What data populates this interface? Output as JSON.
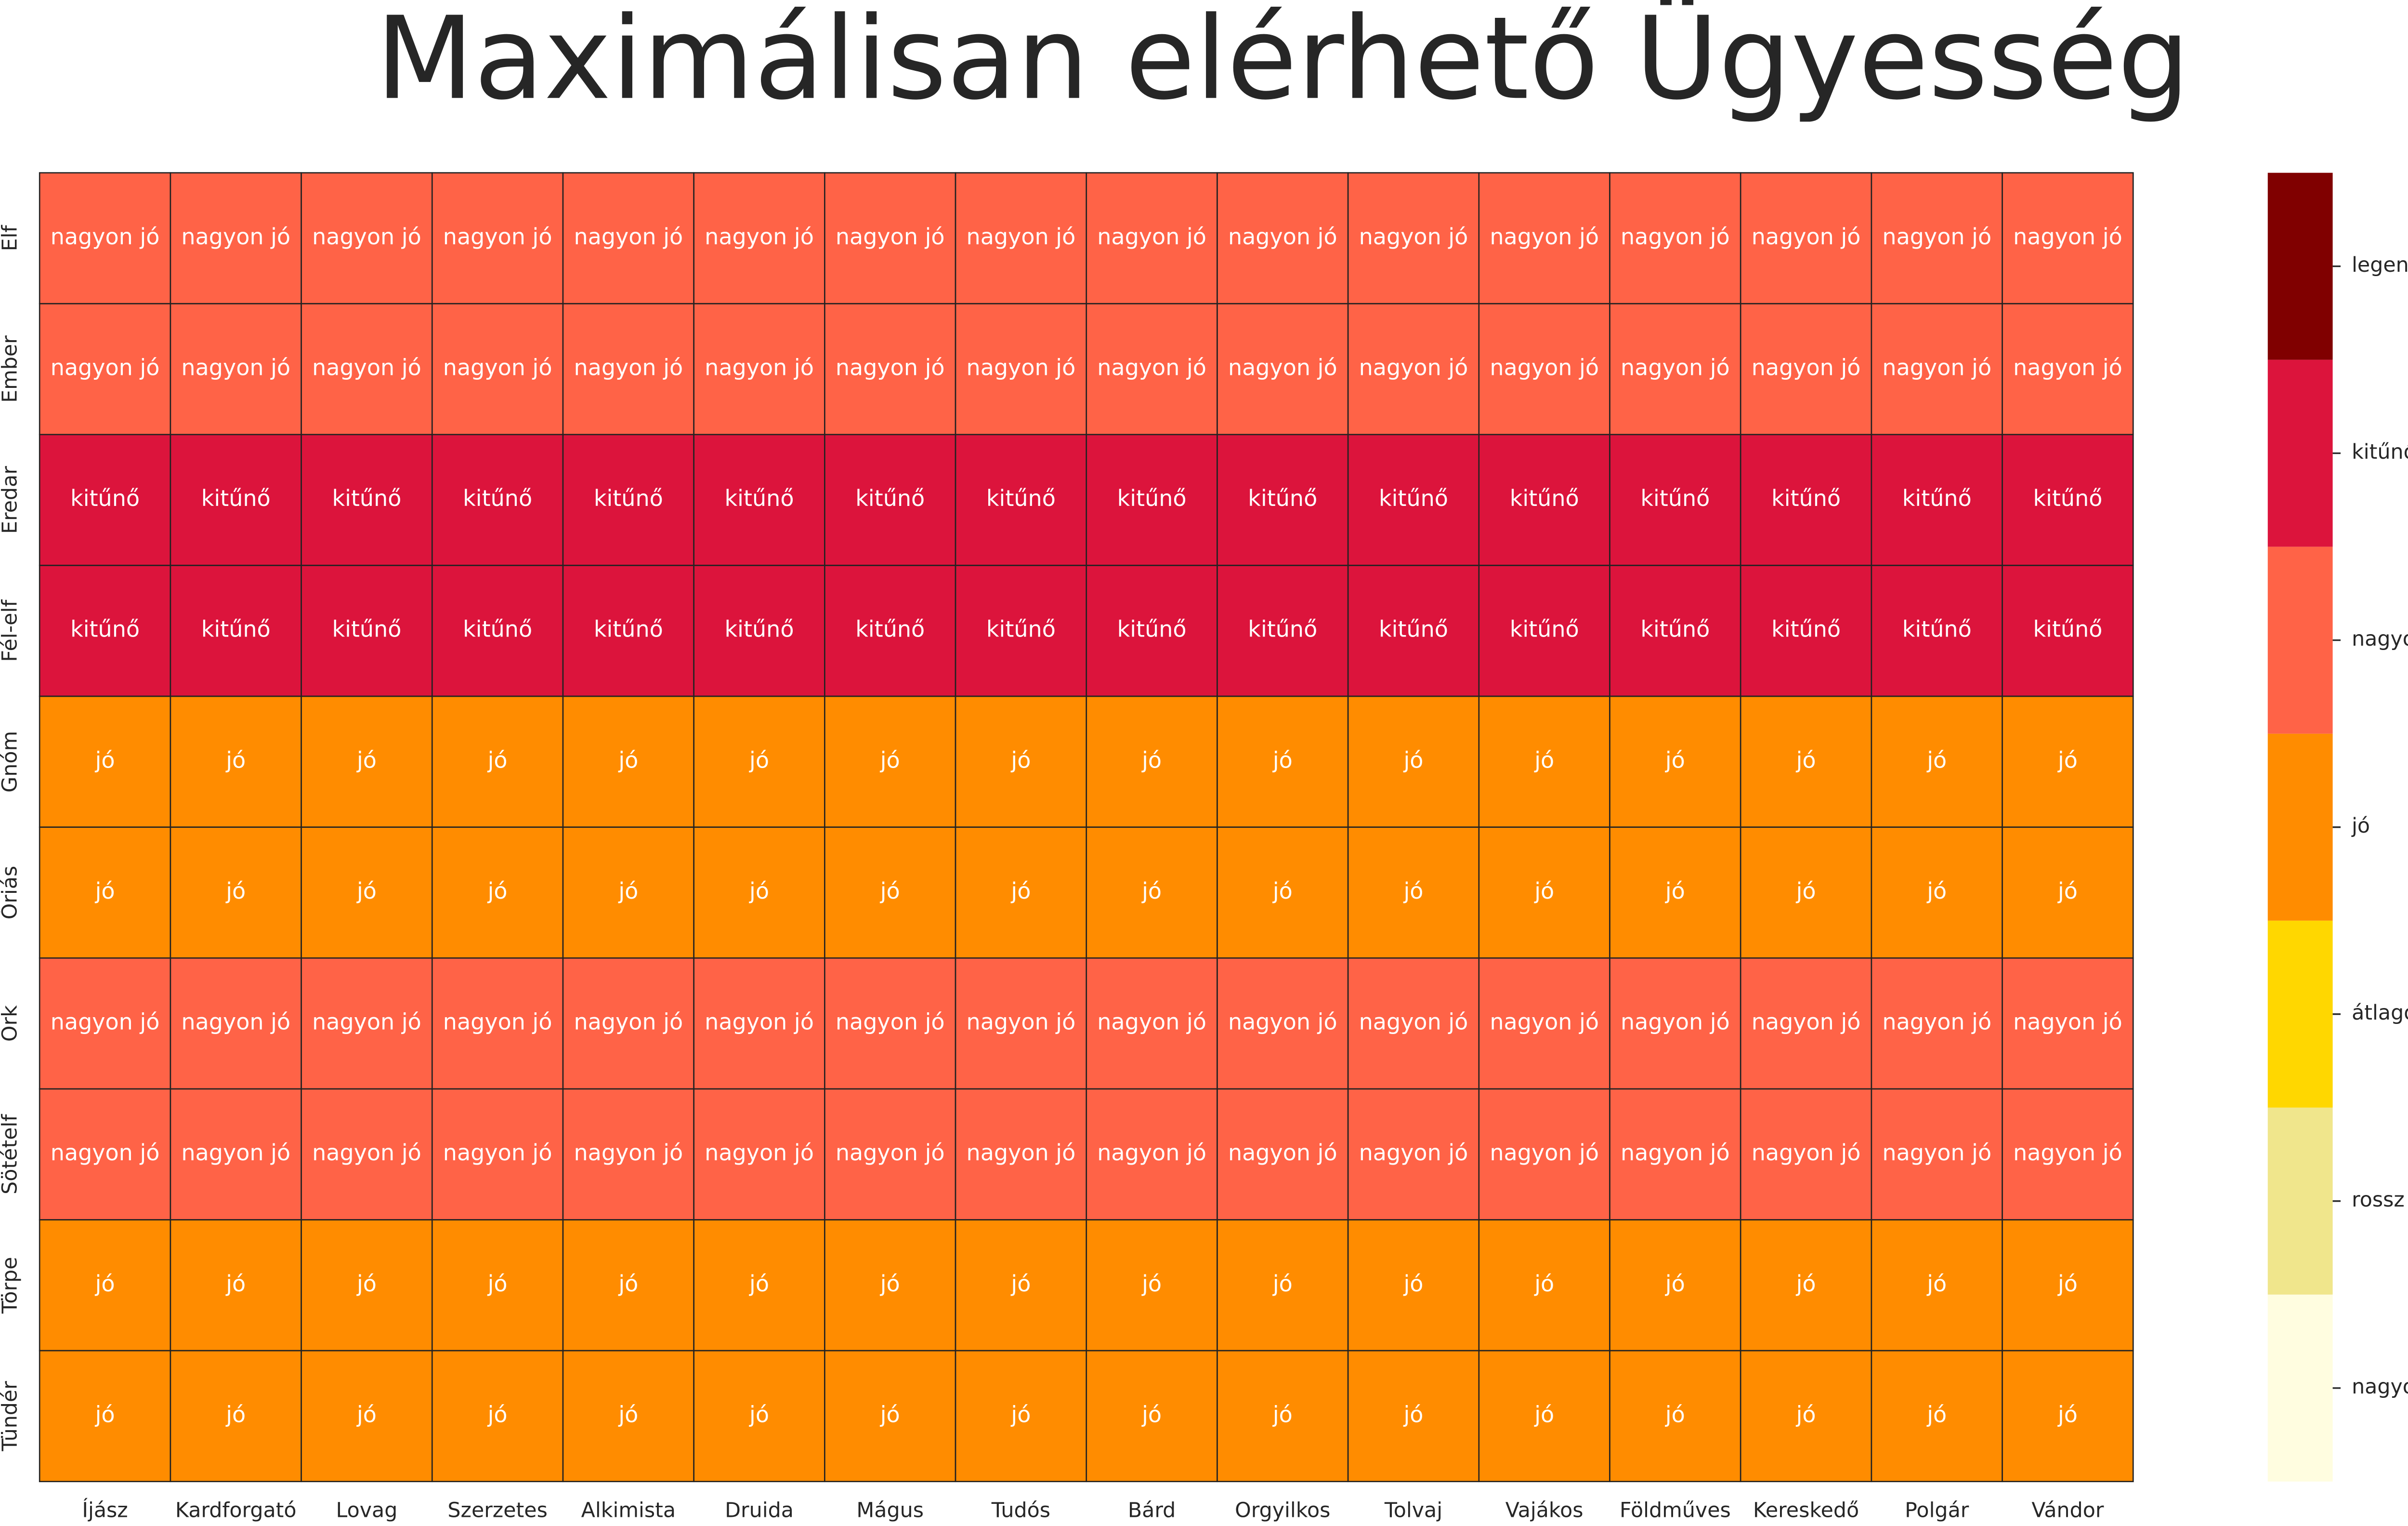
{
  "chart_data": {
    "type": "heatmap",
    "title": "Maximálisan elérhető Ügyesség",
    "columns": [
      "Íjász",
      "Kardforgató",
      "Lovag",
      "Szerzetes",
      "Alkimista",
      "Druida",
      "Mágus",
      "Tudós",
      "Bárd",
      "Orgyilkos",
      "Tolvaj",
      "Vajákos",
      "Földműves",
      "Kereskedő",
      "Polgár",
      "Vándor"
    ],
    "rows": [
      "Elf",
      "Ember",
      "Eredar",
      "Fél-elf",
      "Gnóm",
      "Óriás",
      "Ork",
      "Sötételf",
      "Törpe",
      "Tündér"
    ],
    "values": [
      [
        "nagyon jó",
        "nagyon jó",
        "nagyon jó",
        "nagyon jó",
        "nagyon jó",
        "nagyon jó",
        "nagyon jó",
        "nagyon jó",
        "nagyon jó",
        "nagyon jó",
        "nagyon jó",
        "nagyon jó",
        "nagyon jó",
        "nagyon jó",
        "nagyon jó",
        "nagyon jó"
      ],
      [
        "nagyon jó",
        "nagyon jó",
        "nagyon jó",
        "nagyon jó",
        "nagyon jó",
        "nagyon jó",
        "nagyon jó",
        "nagyon jó",
        "nagyon jó",
        "nagyon jó",
        "nagyon jó",
        "nagyon jó",
        "nagyon jó",
        "nagyon jó",
        "nagyon jó",
        "nagyon jó"
      ],
      [
        "kitűnő",
        "kitűnő",
        "kitűnő",
        "kitűnő",
        "kitűnő",
        "kitűnő",
        "kitűnő",
        "kitűnő",
        "kitűnő",
        "kitűnő",
        "kitűnő",
        "kitűnő",
        "kitűnő",
        "kitűnő",
        "kitűnő",
        "kitűnő"
      ],
      [
        "kitűnő",
        "kitűnő",
        "kitűnő",
        "kitűnő",
        "kitűnő",
        "kitűnő",
        "kitűnő",
        "kitűnő",
        "kitűnő",
        "kitűnő",
        "kitűnő",
        "kitűnő",
        "kitűnő",
        "kitűnő",
        "kitűnő",
        "kitűnő"
      ],
      [
        "jó",
        "jó",
        "jó",
        "jó",
        "jó",
        "jó",
        "jó",
        "jó",
        "jó",
        "jó",
        "jó",
        "jó",
        "jó",
        "jó",
        "jó",
        "jó"
      ],
      [
        "jó",
        "jó",
        "jó",
        "jó",
        "jó",
        "jó",
        "jó",
        "jó",
        "jó",
        "jó",
        "jó",
        "jó",
        "jó",
        "jó",
        "jó",
        "jó"
      ],
      [
        "nagyon jó",
        "nagyon jó",
        "nagyon jó",
        "nagyon jó",
        "nagyon jó",
        "nagyon jó",
        "nagyon jó",
        "nagyon jó",
        "nagyon jó",
        "nagyon jó",
        "nagyon jó",
        "nagyon jó",
        "nagyon jó",
        "nagyon jó",
        "nagyon jó",
        "nagyon jó"
      ],
      [
        "nagyon jó",
        "nagyon jó",
        "nagyon jó",
        "nagyon jó",
        "nagyon jó",
        "nagyon jó",
        "nagyon jó",
        "nagyon jó",
        "nagyon jó",
        "nagyon jó",
        "nagyon jó",
        "nagyon jó",
        "nagyon jó",
        "nagyon jó",
        "nagyon jó",
        "nagyon jó"
      ],
      [
        "jó",
        "jó",
        "jó",
        "jó",
        "jó",
        "jó",
        "jó",
        "jó",
        "jó",
        "jó",
        "jó",
        "jó",
        "jó",
        "jó",
        "jó",
        "jó"
      ],
      [
        "jó",
        "jó",
        "jó",
        "jó",
        "jó",
        "jó",
        "jó",
        "jó",
        "jó",
        "jó",
        "jó",
        "jó",
        "jó",
        "jó",
        "jó",
        "jó"
      ]
    ],
    "levels": [
      {
        "label": "nagyon rossz",
        "color": "#fffde0"
      },
      {
        "label": "rossz",
        "color": "#f0e68c"
      },
      {
        "label": "átlagos",
        "color": "#ffd700"
      },
      {
        "label": "jó",
        "color": "#ff8c00"
      },
      {
        "label": "nagyon jó",
        "color": "#ff6347"
      },
      {
        "label": "kitűnő",
        "color": "#dc143c"
      },
      {
        "label": "legendás",
        "color": "#800000"
      }
    ]
  }
}
